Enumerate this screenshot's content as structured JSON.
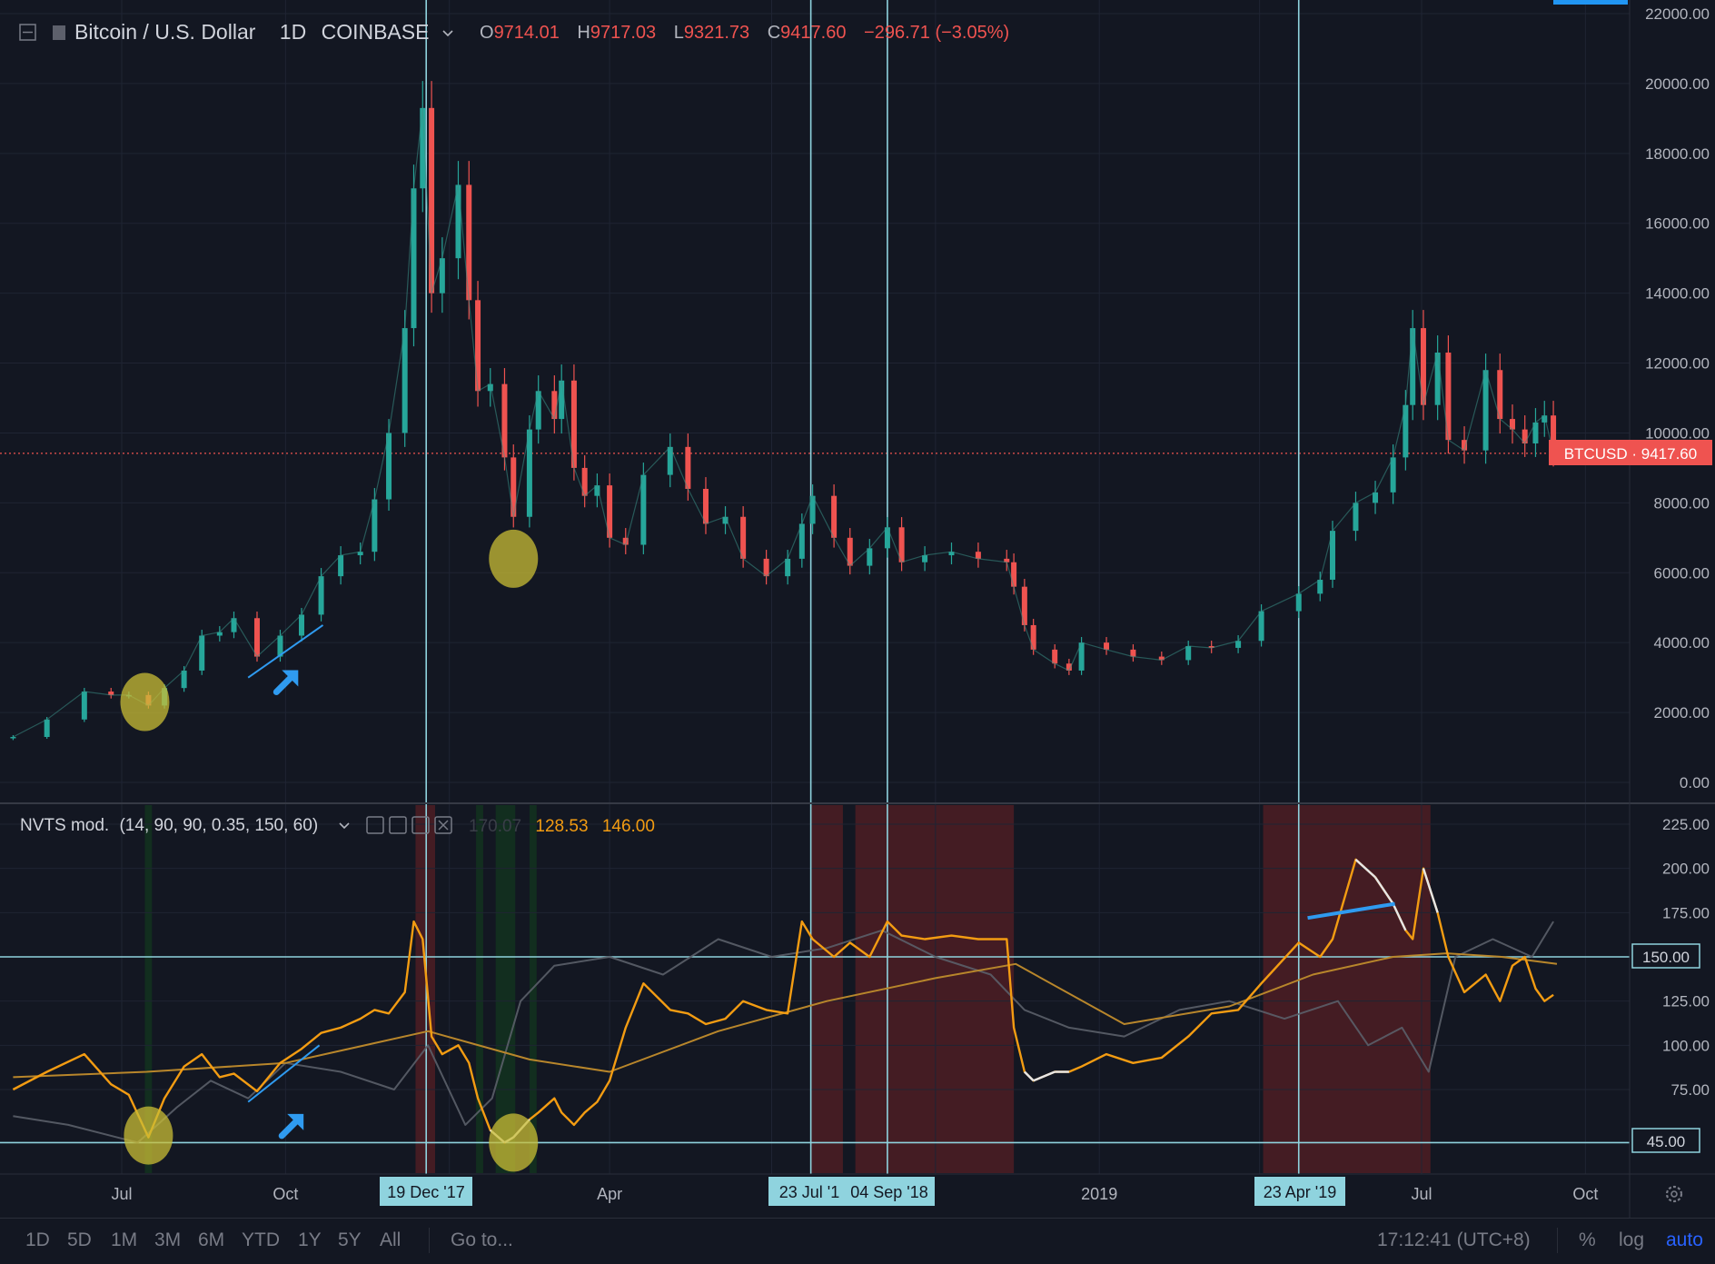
{
  "header": {
    "symbol": "Bitcoin / U.S. Dollar",
    "interval": "1D",
    "exchange": "COINBASE",
    "o_label": "O",
    "o_value": "9714.01",
    "h_label": "H",
    "h_value": "9717.03",
    "l_label": "L",
    "l_value": "9321.73",
    "c_label": "C",
    "c_value": "9417.60",
    "change": "−296.71 (−3.05%)"
  },
  "indicator": {
    "name": "NVTS mod.",
    "params": "(14, 90, 90, 0.35, 150, 60)",
    "val1": "170.07",
    "val2": "128.53",
    "val3": "146.00"
  },
  "price_tag": "BTCUSD · 9417.60",
  "level_tags": [
    "150.00",
    "45.00"
  ],
  "vline_tags": [
    "19 Dec '17",
    "23 Jul '1",
    "04 Sep '18",
    "23 Apr '19"
  ],
  "toolbar": {
    "ranges": [
      "1D",
      "5D",
      "1M",
      "3M",
      "6M",
      "YTD",
      "1Y",
      "5Y",
      "All"
    ],
    "goto": "Go to...",
    "clock": "17:12:41 (UTC+8)",
    "percent": "%",
    "log": "log",
    "auto": "auto"
  },
  "colors": {
    "background": "#131722",
    "grid": "#1f2433",
    "up": "#26a69a",
    "down": "#ef5350",
    "nvts": "#f39c12",
    "nvts_overbought": "#e6e6e6",
    "ma": "#b8862b",
    "signal": "#5b5f69",
    "vline": "#8fd3de",
    "highlight": "#c9be36",
    "arrow": "#2f9bf0",
    "red_zone": "#4a1d24",
    "green_zone": "#13311f",
    "price_tag": "#ef5350"
  },
  "chart_data": [
    {
      "type": "candlestick",
      "title": "Bitcoin / U.S. Dollar, 1D, COINBASE",
      "y_axis_ticks": [
        0,
        2000,
        4000,
        6000,
        8000,
        10000,
        12000,
        14000,
        16000,
        18000,
        20000,
        22000
      ],
      "ylim": [
        -500,
        22000
      ],
      "x_range": [
        "2017-05-01",
        "2019-11-20"
      ],
      "x_ticks": [
        "Jul",
        "Oct",
        "Apr",
        "2019",
        "Jul",
        "Oct"
      ],
      "last_price": 9417.6,
      "series": [
        {
          "name": "BTCUSD close",
          "x": [
            "2017-05-01",
            "2017-05-20",
            "2017-06-10",
            "2017-06-25",
            "2017-07-05",
            "2017-07-16",
            "2017-07-25",
            "2017-08-05",
            "2017-08-15",
            "2017-08-25",
            "2017-09-02",
            "2017-09-15",
            "2017-09-28",
            "2017-10-10",
            "2017-10-21",
            "2017-11-01",
            "2017-11-12",
            "2017-11-20",
            "2017-11-28",
            "2017-12-07",
            "2017-12-12",
            "2017-12-17",
            "2017-12-22",
            "2017-12-28",
            "2018-01-06",
            "2018-01-12",
            "2018-01-17",
            "2018-01-24",
            "2018-02-01",
            "2018-02-06",
            "2018-02-15",
            "2018-02-20",
            "2018-03-01",
            "2018-03-05",
            "2018-03-12",
            "2018-03-18",
            "2018-03-25",
            "2018-04-01",
            "2018-04-10",
            "2018-04-20",
            "2018-05-05",
            "2018-05-15",
            "2018-05-25",
            "2018-06-05",
            "2018-06-15",
            "2018-06-28",
            "2018-07-10",
            "2018-07-18",
            "2018-07-24",
            "2018-08-05",
            "2018-08-14",
            "2018-08-25",
            "2018-09-04",
            "2018-09-12",
            "2018-09-25",
            "2018-10-10",
            "2018-10-25",
            "2018-11-10",
            "2018-11-14",
            "2018-11-20",
            "2018-11-25",
            "2018-12-07",
            "2018-12-15",
            "2018-12-22",
            "2019-01-05",
            "2019-01-20",
            "2019-02-05",
            "2019-02-20",
            "2019-03-05",
            "2019-03-20",
            "2019-04-02",
            "2019-04-23",
            "2019-05-05",
            "2019-05-12",
            "2019-05-25",
            "2019-06-05",
            "2019-06-15",
            "2019-06-22",
            "2019-06-26",
            "2019-07-02",
            "2019-07-10",
            "2019-07-16",
            "2019-07-25",
            "2019-08-06",
            "2019-08-14",
            "2019-08-21",
            "2019-08-28",
            "2019-09-03",
            "2019-09-08",
            "2019-09-13"
          ],
          "values": [
            1300,
            1800,
            2600,
            2500,
            2500,
            2200,
            2700,
            3200,
            4200,
            4300,
            4700,
            3600,
            4200,
            4800,
            5900,
            6500,
            6600,
            8100,
            10000,
            13000,
            17000,
            19300,
            14000,
            15000,
            17100,
            13800,
            11200,
            11400,
            9300,
            7600,
            10100,
            11200,
            10400,
            11500,
            9000,
            8200,
            8500,
            7000,
            6800,
            8800,
            9600,
            8400,
            7400,
            7600,
            6400,
            5900,
            6400,
            7400,
            8200,
            7000,
            6200,
            6700,
            7300,
            6300,
            6500,
            6600,
            6400,
            6300,
            5600,
            4500,
            3800,
            3400,
            3200,
            4000,
            3800,
            3600,
            3500,
            3900,
            3850,
            4050,
            4900,
            5400,
            5800,
            7200,
            8000,
            8300,
            9300,
            10800,
            13000,
            10800,
            12300,
            9800,
            9500,
            11800,
            10400,
            10100,
            9700,
            10300,
            10500,
            9417.6
          ]
        }
      ]
    },
    {
      "type": "line",
      "title": "NVTS mod. (14, 90, 90, 0.35, 150, 60)",
      "y_axis_ticks": [
        75,
        100,
        125,
        150,
        175,
        200,
        225
      ],
      "ylim": [
        27,
        236
      ],
      "levels": [
        150,
        45
      ],
      "shaded_zones_red": [
        [
          "2017-12-13",
          "2017-12-24"
        ],
        [
          "2018-07-23",
          "2018-08-10"
        ],
        [
          "2018-08-17",
          "2018-11-14"
        ],
        [
          "2019-04-03",
          "2019-07-06"
        ]
      ],
      "shaded_zones_green": [
        [
          "2017-07-14",
          "2017-07-18"
        ],
        [
          "2018-01-16",
          "2018-01-20"
        ],
        [
          "2018-01-27",
          "2018-02-07"
        ],
        [
          "2018-02-15",
          "2018-02-19"
        ]
      ],
      "series": [
        {
          "name": "NVTS",
          "x": [
            "2017-05-01",
            "2017-05-20",
            "2017-06-10",
            "2017-06-25",
            "2017-07-05",
            "2017-07-16",
            "2017-07-25",
            "2017-08-05",
            "2017-08-15",
            "2017-08-25",
            "2017-09-02",
            "2017-09-15",
            "2017-09-28",
            "2017-10-10",
            "2017-10-21",
            "2017-11-01",
            "2017-11-12",
            "2017-11-20",
            "2017-11-28",
            "2017-12-07",
            "2017-12-12",
            "2017-12-17",
            "2017-12-22",
            "2017-12-28",
            "2018-01-06",
            "2018-01-12",
            "2018-01-17",
            "2018-01-24",
            "2018-02-01",
            "2018-02-06",
            "2018-02-15",
            "2018-02-20",
            "2018-03-01",
            "2018-03-05",
            "2018-03-12",
            "2018-03-18",
            "2018-03-25",
            "2018-04-01",
            "2018-04-10",
            "2018-04-20",
            "2018-05-05",
            "2018-05-15",
            "2018-05-25",
            "2018-06-05",
            "2018-06-15",
            "2018-06-28",
            "2018-07-10",
            "2018-07-18",
            "2018-07-24",
            "2018-08-05",
            "2018-08-14",
            "2018-08-25",
            "2018-09-04",
            "2018-09-12",
            "2018-09-25",
            "2018-10-10",
            "2018-10-25",
            "2018-11-10",
            "2018-11-14",
            "2018-11-20",
            "2018-11-25",
            "2018-12-07",
            "2018-12-15",
            "2018-12-22",
            "2019-01-05",
            "2019-01-20",
            "2019-02-05",
            "2019-02-20",
            "2019-03-05",
            "2019-03-20",
            "2019-04-02",
            "2019-04-23",
            "2019-05-05",
            "2019-05-12",
            "2019-05-25",
            "2019-06-05",
            "2019-06-15",
            "2019-06-22",
            "2019-06-26",
            "2019-07-02",
            "2019-07-10",
            "2019-07-16",
            "2019-07-25",
            "2019-08-06",
            "2019-08-14",
            "2019-08-21",
            "2019-08-28",
            "2019-09-03",
            "2019-09-08",
            "2019-09-13"
          ],
          "values": [
            75,
            85,
            95,
            78,
            72,
            48,
            70,
            88,
            95,
            82,
            84,
            74,
            90,
            98,
            107,
            110,
            115,
            120,
            118,
            130,
            170,
            160,
            105,
            95,
            100,
            90,
            70,
            52,
            45,
            48,
            58,
            62,
            70,
            62,
            55,
            62,
            68,
            80,
            110,
            135,
            120,
            118,
            112,
            115,
            125,
            120,
            118,
            170,
            160,
            150,
            158,
            150,
            170,
            162,
            160,
            162,
            160,
            160,
            110,
            85,
            80,
            85,
            85,
            88,
            95,
            90,
            93,
            105,
            118,
            120,
            135,
            158,
            150,
            160,
            205,
            195,
            180,
            165,
            160,
            200,
            175,
            150,
            130,
            140,
            125,
            145,
            150,
            132,
            125,
            128.53
          ]
        },
        {
          "name": "MA",
          "x": [
            "2017-05-01",
            "2017-07-15",
            "2017-10-01",
            "2017-12-20",
            "2018-02-15",
            "2018-04-01",
            "2018-06-01",
            "2018-08-01",
            "2018-10-01",
            "2018-11-15",
            "2019-01-15",
            "2019-03-15",
            "2019-05-01",
            "2019-06-15",
            "2019-07-15",
            "2019-08-15",
            "2019-09-15"
          ],
          "values": [
            82,
            85,
            90,
            108,
            92,
            85,
            108,
            125,
            138,
            146,
            112,
            122,
            140,
            150,
            152,
            150,
            146
          ]
        },
        {
          "name": "Signal",
          "x": [
            "2017-05-01",
            "2017-06-01",
            "2017-07-10",
            "2017-08-01",
            "2017-08-20",
            "2017-09-10",
            "2017-10-01",
            "2017-11-01",
            "2017-12-01",
            "2017-12-20",
            "2018-01-10",
            "2018-01-25",
            "2018-02-10",
            "2018-03-01",
            "2018-04-01",
            "2018-05-01",
            "2018-06-01",
            "2018-07-01",
            "2018-08-01",
            "2018-09-01",
            "2018-10-01",
            "2018-11-01",
            "2018-11-20",
            "2018-12-15",
            "2019-01-15",
            "2019-02-15",
            "2019-03-15",
            "2019-04-15",
            "2019-05-15",
            "2019-06-01",
            "2019-06-20",
            "2019-07-05",
            "2019-07-20",
            "2019-08-10",
            "2019-09-01",
            "2019-09-13"
          ],
          "values": [
            60,
            55,
            45,
            65,
            80,
            70,
            90,
            85,
            75,
            100,
            55,
            70,
            125,
            145,
            150,
            140,
            160,
            150,
            155,
            165,
            150,
            140,
            120,
            110,
            105,
            120,
            125,
            115,
            125,
            100,
            110,
            85,
            150,
            160,
            150,
            170
          ]
        }
      ]
    }
  ]
}
